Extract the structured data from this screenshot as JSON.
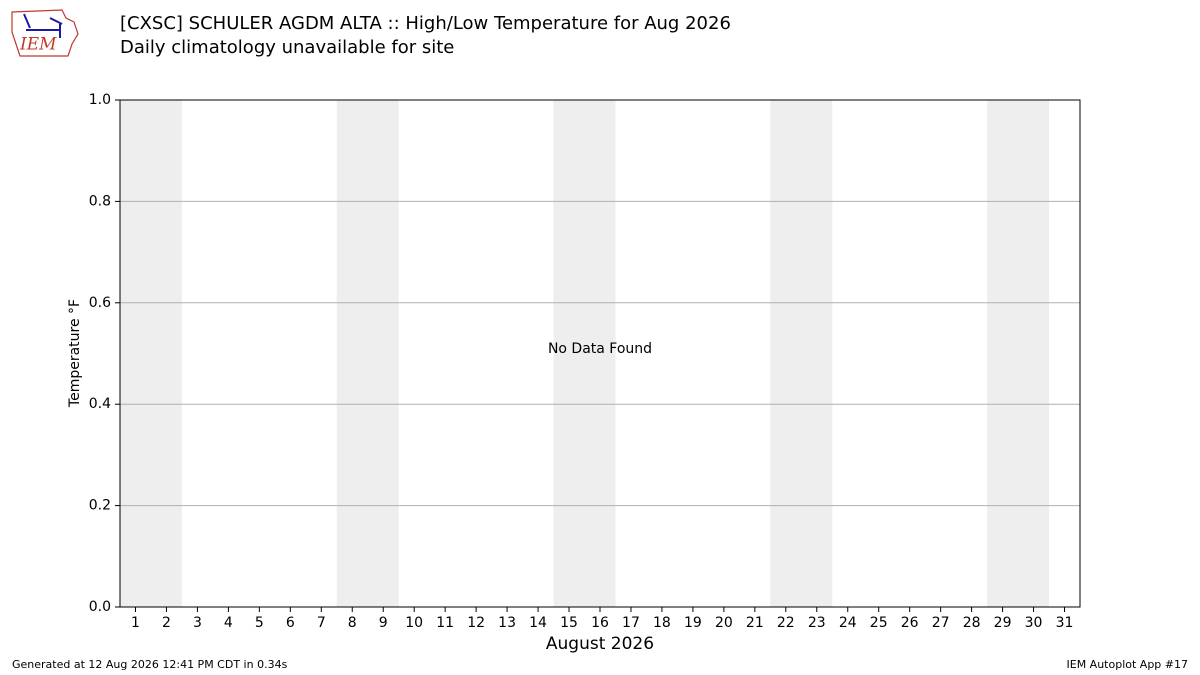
{
  "logo": "IEM",
  "chart_data": {
    "type": "line",
    "title": "[CXSC] SCHULER AGDM  ALTA :: High/Low Temperature for Aug 2026",
    "subtitle": "Daily climatology unavailable for site",
    "annotation": "No Data Found",
    "xlabel": "August 2026",
    "ylabel": "Temperature °F",
    "xlim": [
      0.5,
      31.5
    ],
    "xticks": [
      1,
      2,
      3,
      4,
      5,
      6,
      7,
      8,
      9,
      10,
      11,
      12,
      13,
      14,
      15,
      16,
      17,
      18,
      19,
      20,
      21,
      22,
      23,
      24,
      25,
      26,
      27,
      28,
      29,
      30,
      31
    ],
    "ylim": [
      0,
      1
    ],
    "yticks": [
      {
        "value": 0,
        "label": "0.0"
      },
      0.2,
      0.4,
      0.6,
      0.8,
      {
        "value": 1,
        "label": "1.0"
      }
    ],
    "grid": true,
    "shaded_spans": [
      [
        0.5,
        2.5
      ],
      [
        7.5,
        9.5
      ],
      [
        14.5,
        16.5
      ],
      [
        21.5,
        23.5
      ],
      [
        28.5,
        30.5
      ]
    ],
    "shade_color": "#eeeeee",
    "series": []
  },
  "footer": {
    "left": "Generated at 12 Aug 2026 12:41 PM CDT in 0.34s",
    "right": "IEM Autoplot App #17"
  }
}
